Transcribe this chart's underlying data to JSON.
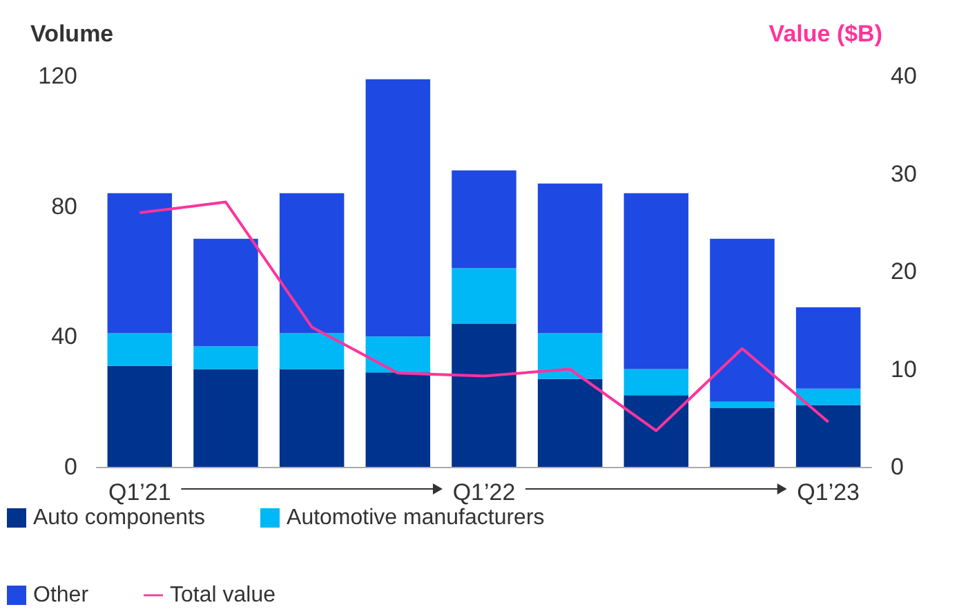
{
  "chart_data": {
    "type": "bar",
    "stacked": true,
    "ylabel": "Volume",
    "y2label": "Value ($B)",
    "categories": [
      "Q1’21",
      null,
      null,
      null,
      "Q1’22",
      null,
      null,
      null,
      "Q1’23"
    ],
    "series": [
      {
        "name": "Auto components",
        "color": "#00338d",
        "values": [
          31,
          30,
          30,
          29,
          44,
          27,
          22,
          18,
          19
        ]
      },
      {
        "name": "Automotive manufacturers",
        "color": "#00b8f5",
        "values": [
          10,
          7,
          11,
          11,
          17,
          14,
          8,
          2,
          5
        ]
      },
      {
        "name": "Other",
        "color": "#1e49e2",
        "values": [
          43,
          33,
          43,
          79,
          30,
          46,
          54,
          50,
          25
        ]
      },
      {
        "name": "Total value",
        "type": "line",
        "axis": "y2",
        "color": "#fd349c",
        "values": [
          26,
          27.1,
          14.3,
          9.6,
          9.3,
          10,
          3.7,
          12.1,
          4.6
        ]
      }
    ],
    "ylim": [
      0,
      120
    ],
    "yticks": [
      0,
      40,
      80,
      120
    ],
    "y2lim": [
      0,
      40
    ],
    "y2ticks": [
      0,
      10,
      20,
      30,
      40
    ],
    "grid": false,
    "legend": "bottom",
    "marker": "none"
  }
}
